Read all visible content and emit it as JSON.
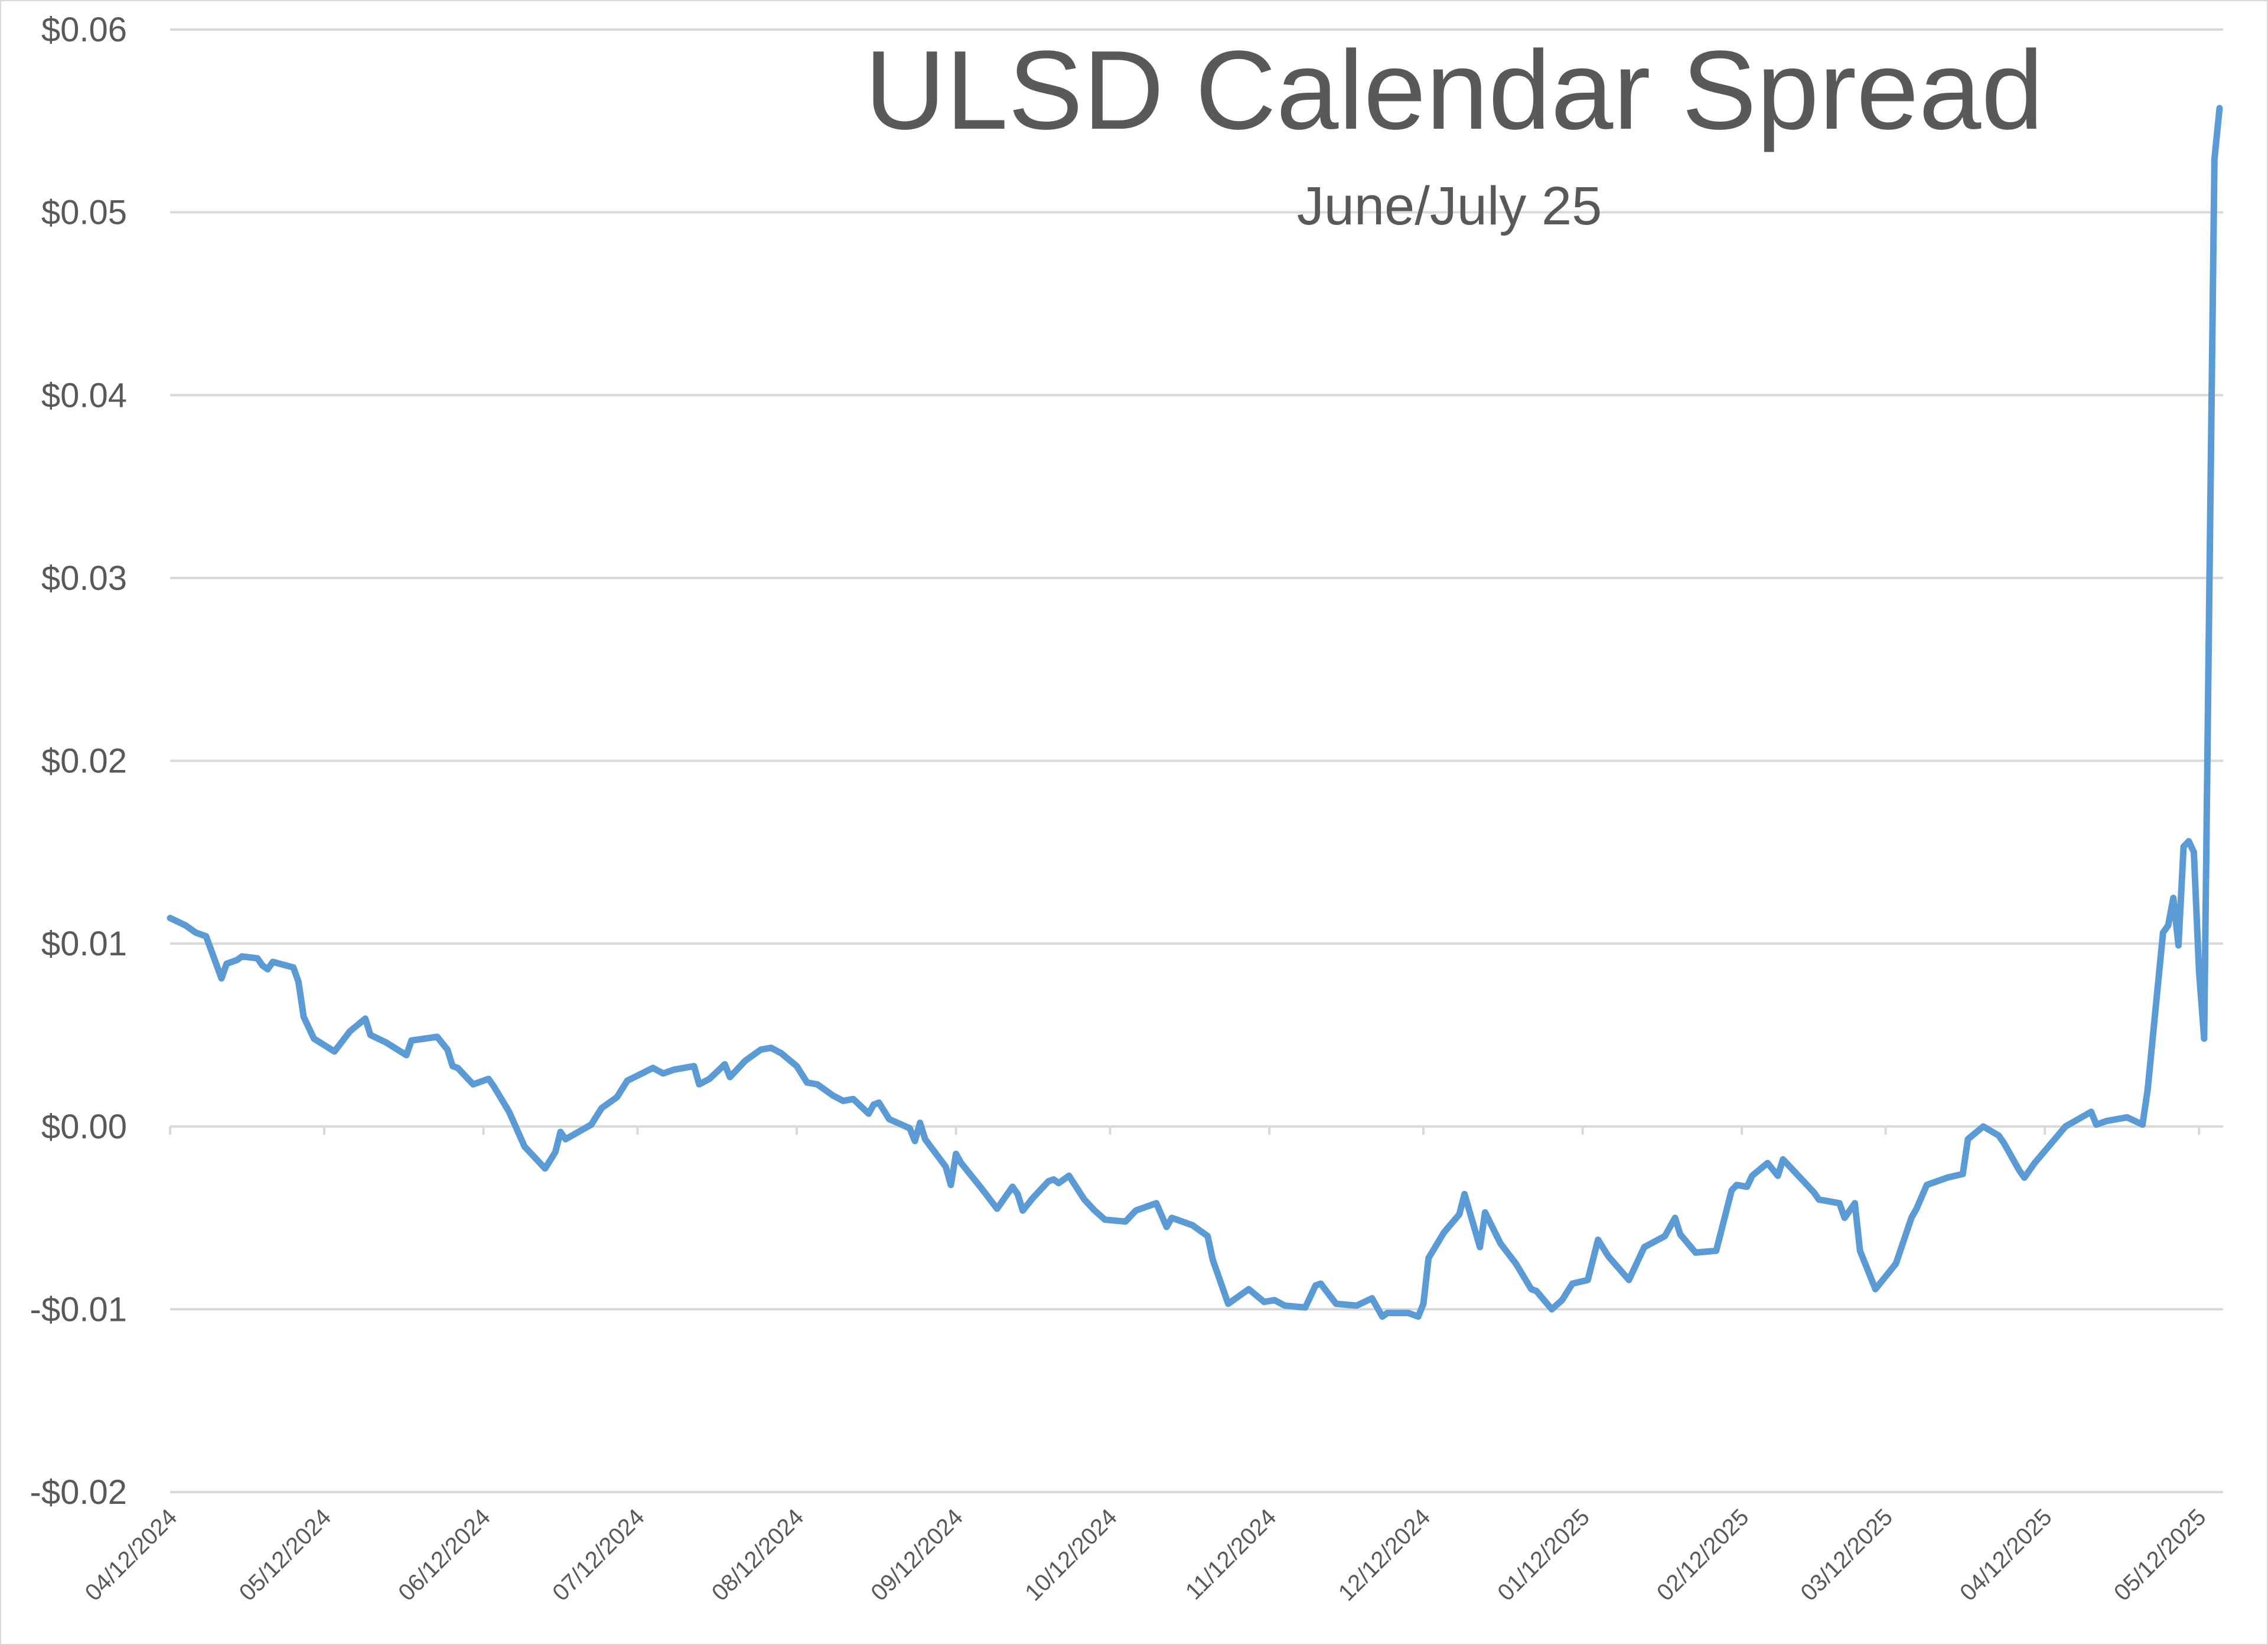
{
  "chart_data": {
    "type": "line",
    "title": "ULSD Calendar Spread",
    "subtitle": "June/July  25",
    "xlabel": "",
    "ylabel": "",
    "ylim": [
      -0.02,
      0.06
    ],
    "y_ticks": [
      -0.02,
      -0.01,
      0.0,
      0.01,
      0.02,
      0.03,
      0.04,
      0.05,
      0.06
    ],
    "y_tick_labels": [
      "-$0.02",
      "-$0.01",
      "$0.00",
      "$0.01",
      "$0.02",
      "$0.03",
      "$0.04",
      "$0.05",
      "$0.06"
    ],
    "x_ticks": [
      "04/12/2024",
      "05/12/2024",
      "06/12/2024",
      "07/12/2024",
      "08/12/2024",
      "09/12/2024",
      "10/12/2024",
      "11/12/2024",
      "12/12/2024",
      "01/12/2025",
      "02/12/2025",
      "03/12/2025",
      "04/12/2025",
      "05/12/2025"
    ],
    "xlim": [
      "04/12/2024",
      "05/16/2025"
    ],
    "grid": "horizontal",
    "legend": "none",
    "series_color": "#5B9BD5",
    "series": [
      {
        "values": [
          [
            "04/12/2024",
            0.0114
          ],
          [
            "04/15/2024",
            0.011
          ],
          [
            "04/17/2024",
            0.0106
          ],
          [
            "04/19/2024",
            0.0104
          ],
          [
            "04/22/2024",
            0.0081
          ],
          [
            "04/23/2024",
            0.0089
          ],
          [
            "04/25/2024",
            0.0091
          ],
          [
            "04/26/2024",
            0.0093
          ],
          [
            "04/29/2024",
            0.0092
          ],
          [
            "04/30/2024",
            0.0088
          ],
          [
            "05/01/2024",
            0.0086
          ],
          [
            "05/02/2024",
            0.009
          ],
          [
            "05/06/2024",
            0.0087
          ],
          [
            "05/07/2024",
            0.0079
          ],
          [
            "05/08/2024",
            0.006
          ],
          [
            "05/10/2024",
            0.0048
          ],
          [
            "05/14/2024",
            0.0041
          ],
          [
            "05/17/2024",
            0.0052
          ],
          [
            "05/20/2024",
            0.0059
          ],
          [
            "05/21/2024",
            0.005
          ],
          [
            "05/24/2024",
            0.0046
          ],
          [
            "05/28/2024",
            0.0039
          ],
          [
            "05/29/2024",
            0.0047
          ],
          [
            "06/03/2024",
            0.0049
          ],
          [
            "06/05/2024",
            0.0042
          ],
          [
            "06/06/2024",
            0.0033
          ],
          [
            "06/07/2024",
            0.0032
          ],
          [
            "06/10/2024",
            0.0023
          ],
          [
            "06/13/2024",
            0.0026
          ],
          [
            "06/14/2024",
            0.0022
          ],
          [
            "06/17/2024",
            0.0008
          ],
          [
            "06/20/2024",
            -0.0011
          ],
          [
            "06/24/2024",
            -0.0023
          ],
          [
            "06/26/2024",
            -0.0014
          ],
          [
            "06/27/2024",
            -0.0003
          ],
          [
            "06/28/2024",
            -0.0007
          ],
          [
            "07/03/2024",
            0.0001
          ],
          [
            "07/05/2024",
            0.001
          ],
          [
            "07/08/2024",
            0.0016
          ],
          [
            "07/10/2024",
            0.0025
          ],
          [
            "07/15/2024",
            0.0032
          ],
          [
            "07/17/2024",
            0.0029
          ],
          [
            "07/19/2024",
            0.0031
          ],
          [
            "07/23/2024",
            0.0033
          ],
          [
            "07/24/2024",
            0.0023
          ],
          [
            "07/26/2024",
            0.0026
          ],
          [
            "07/29/2024",
            0.0034
          ],
          [
            "07/30/2024",
            0.0027
          ],
          [
            "08/02/2024",
            0.0036
          ],
          [
            "08/05/2024",
            0.0042
          ],
          [
            "08/07/2024",
            0.0043
          ],
          [
            "08/09/2024",
            0.004
          ],
          [
            "08/12/2024",
            0.0033
          ],
          [
            "08/14/2024",
            0.0024
          ],
          [
            "08/16/2024",
            0.0023
          ],
          [
            "08/19/2024",
            0.0017
          ],
          [
            "08/21/2024",
            0.0014
          ],
          [
            "08/23/2024",
            0.0015
          ],
          [
            "08/26/2024",
            0.0007
          ],
          [
            "08/27/2024",
            0.0012
          ],
          [
            "08/28/2024",
            0.0013
          ],
          [
            "08/30/2024",
            0.0004
          ],
          [
            "09/03/2024",
            -0.0001
          ],
          [
            "09/04/2024",
            -0.0008
          ],
          [
            "09/05/2024",
            0.0002
          ],
          [
            "09/06/2024",
            -0.0007
          ],
          [
            "09/10/2024",
            -0.0022
          ],
          [
            "09/11/2024",
            -0.0032
          ],
          [
            "09/12/2024",
            -0.0015
          ],
          [
            "09/13/2024",
            -0.002
          ],
          [
            "09/17/2024",
            -0.0034
          ],
          [
            "09/20/2024",
            -0.0045
          ],
          [
            "09/23/2024",
            -0.0033
          ],
          [
            "09/24/2024",
            -0.0037
          ],
          [
            "09/25/2024",
            -0.0046
          ],
          [
            "09/27/2024",
            -0.0039
          ],
          [
            "09/30/2024",
            -0.003
          ],
          [
            "10/01/2024",
            -0.0029
          ],
          [
            "10/02/2024",
            -0.0031
          ],
          [
            "10/04/2024",
            -0.0027
          ],
          [
            "10/07/2024",
            -0.004
          ],
          [
            "10/09/2024",
            -0.0046
          ],
          [
            "10/11/2024",
            -0.0051
          ],
          [
            "10/15/2024",
            -0.0052
          ],
          [
            "10/17/2024",
            -0.0046
          ],
          [
            "10/21/2024",
            -0.0042
          ],
          [
            "10/23/2024",
            -0.0055
          ],
          [
            "10/24/2024",
            -0.005
          ],
          [
            "10/28/2024",
            -0.0054
          ],
          [
            "10/31/2024",
            -0.006
          ],
          [
            "11/01/2024",
            -0.0073
          ],
          [
            "11/04/2024",
            -0.0097
          ],
          [
            "11/06/2024",
            -0.0093
          ],
          [
            "11/08/2024",
            -0.0089
          ],
          [
            "11/11/2024",
            -0.0096
          ],
          [
            "11/13/2024",
            -0.0095
          ],
          [
            "11/15/2024",
            -0.0098
          ],
          [
            "11/19/2024",
            -0.0099
          ],
          [
            "11/21/2024",
            -0.0087
          ],
          [
            "11/22/2024",
            -0.0086
          ],
          [
            "11/25/2024",
            -0.0097
          ],
          [
            "11/29/2024",
            -0.0098
          ],
          [
            "12/02/2024",
            -0.0094
          ],
          [
            "12/04/2024",
            -0.0104
          ],
          [
            "12/05/2024",
            -0.0102
          ],
          [
            "12/09/2024",
            -0.0102
          ],
          [
            "12/11/2024",
            -0.0104
          ],
          [
            "12/12/2024",
            -0.0097
          ],
          [
            "12/13/2024",
            -0.0072
          ],
          [
            "12/16/2024",
            -0.0058
          ],
          [
            "12/19/2024",
            -0.0048
          ],
          [
            "12/20/2024",
            -0.0037
          ],
          [
            "12/23/2024",
            -0.0066
          ],
          [
            "12/24/2024",
            -0.0047
          ],
          [
            "12/27/2024",
            -0.0064
          ],
          [
            "12/30/2024",
            -0.0075
          ],
          [
            "01/02/2025",
            -0.0089
          ],
          [
            "01/03/2025",
            -0.009
          ],
          [
            "01/06/2025",
            -0.01
          ],
          [
            "01/08/2025",
            -0.0095
          ],
          [
            "01/10/2025",
            -0.0086
          ],
          [
            "01/13/2025",
            -0.0084
          ],
          [
            "01/15/2025",
            -0.0062
          ],
          [
            "01/17/2025",
            -0.0071
          ],
          [
            "01/21/2025",
            -0.0084
          ],
          [
            "01/24/2025",
            -0.0066
          ],
          [
            "01/28/2025",
            -0.006
          ],
          [
            "01/30/2025",
            -0.005
          ],
          [
            "01/31/2025",
            -0.0059
          ],
          [
            "02/03/2025",
            -0.0069
          ],
          [
            "02/07/2025",
            -0.0068
          ],
          [
            "02/10/2025",
            -0.0035
          ],
          [
            "02/11/2025",
            -0.0032
          ],
          [
            "02/13/2025",
            -0.0033
          ],
          [
            "02/14/2025",
            -0.0027
          ],
          [
            "02/17/2025",
            -0.002
          ],
          [
            "02/19/2025",
            -0.0027
          ],
          [
            "02/20/2025",
            -0.0018
          ],
          [
            "02/24/2025",
            -0.003
          ],
          [
            "02/26/2025",
            -0.0036
          ],
          [
            "02/27/2025",
            -0.004
          ],
          [
            "03/03/2025",
            -0.0042
          ],
          [
            "03/04/2025",
            -0.005
          ],
          [
            "03/06/2025",
            -0.0042
          ],
          [
            "03/07/2025",
            -0.0068
          ],
          [
            "03/10/2025",
            -0.0089
          ],
          [
            "03/14/2025",
            -0.0075
          ],
          [
            "03/17/2025",
            -0.005
          ],
          [
            "03/18/2025",
            -0.0045
          ],
          [
            "03/20/2025",
            -0.0032
          ],
          [
            "03/24/2025",
            -0.0028
          ],
          [
            "03/27/2025",
            -0.0026
          ],
          [
            "03/28/2025",
            -0.0007
          ],
          [
            "03/31/2025",
            0.0
          ],
          [
            "04/03/2025",
            -0.0005
          ],
          [
            "04/04/2025",
            -0.0009
          ],
          [
            "04/07/2025",
            -0.0024
          ],
          [
            "04/08/2025",
            -0.0028
          ],
          [
            "04/10/2025",
            -0.002
          ],
          [
            "04/16/2025",
            0.0
          ],
          [
            "04/21/2025",
            0.0008
          ],
          [
            "04/22/2025",
            0.0001
          ],
          [
            "04/24/2025",
            0.0003
          ],
          [
            "04/28/2025",
            0.0005
          ],
          [
            "05/01/2025",
            0.0001
          ],
          [
            "05/02/2025",
            0.002
          ],
          [
            "05/05/2025",
            0.0106
          ],
          [
            "05/06/2025",
            0.011
          ],
          [
            "05/07/2025",
            0.0125
          ],
          [
            "05/08/2025",
            0.0099
          ],
          [
            "05/09/2025",
            0.0153
          ],
          [
            "05/10/2025",
            0.0156
          ],
          [
            "05/11/2025",
            0.015
          ],
          [
            "05/12/2025",
            0.0085
          ],
          [
            "05/13/2025",
            0.0048
          ],
          [
            "05/14/2025",
            0.0291
          ],
          [
            "05/15/2025",
            0.0529
          ],
          [
            "05/16/2025",
            0.0557
          ]
        ]
      }
    ]
  }
}
